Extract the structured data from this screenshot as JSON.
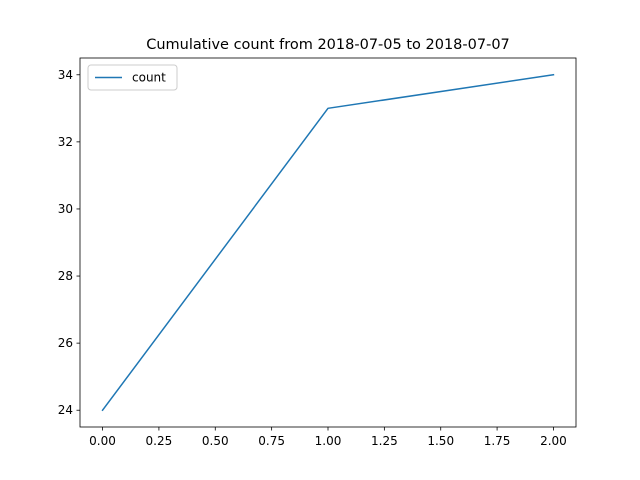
{
  "chart_data": {
    "type": "line",
    "title": "Cumulative count from 2018-07-05 to 2018-07-07",
    "xlabel": "",
    "ylabel": "",
    "x": [
      0,
      1,
      2
    ],
    "series": [
      {
        "name": "count",
        "values": [
          24,
          33,
          34
        ],
        "color": "#1f77b4"
      }
    ],
    "xlim": [
      -0.1,
      2.1
    ],
    "ylim": [
      23.5,
      34.5
    ],
    "xticks": [
      0.0,
      0.25,
      0.5,
      0.75,
      1.0,
      1.25,
      1.5,
      1.75,
      2.0
    ],
    "xtick_labels": [
      "0.00",
      "0.25",
      "0.50",
      "0.75",
      "1.00",
      "1.25",
      "1.50",
      "1.75",
      "2.00"
    ],
    "yticks": [
      24,
      26,
      28,
      30,
      32,
      34
    ],
    "ytick_labels": [
      "24",
      "26",
      "28",
      "30",
      "32",
      "34"
    ],
    "grid": false,
    "legend_position": "top-left"
  }
}
